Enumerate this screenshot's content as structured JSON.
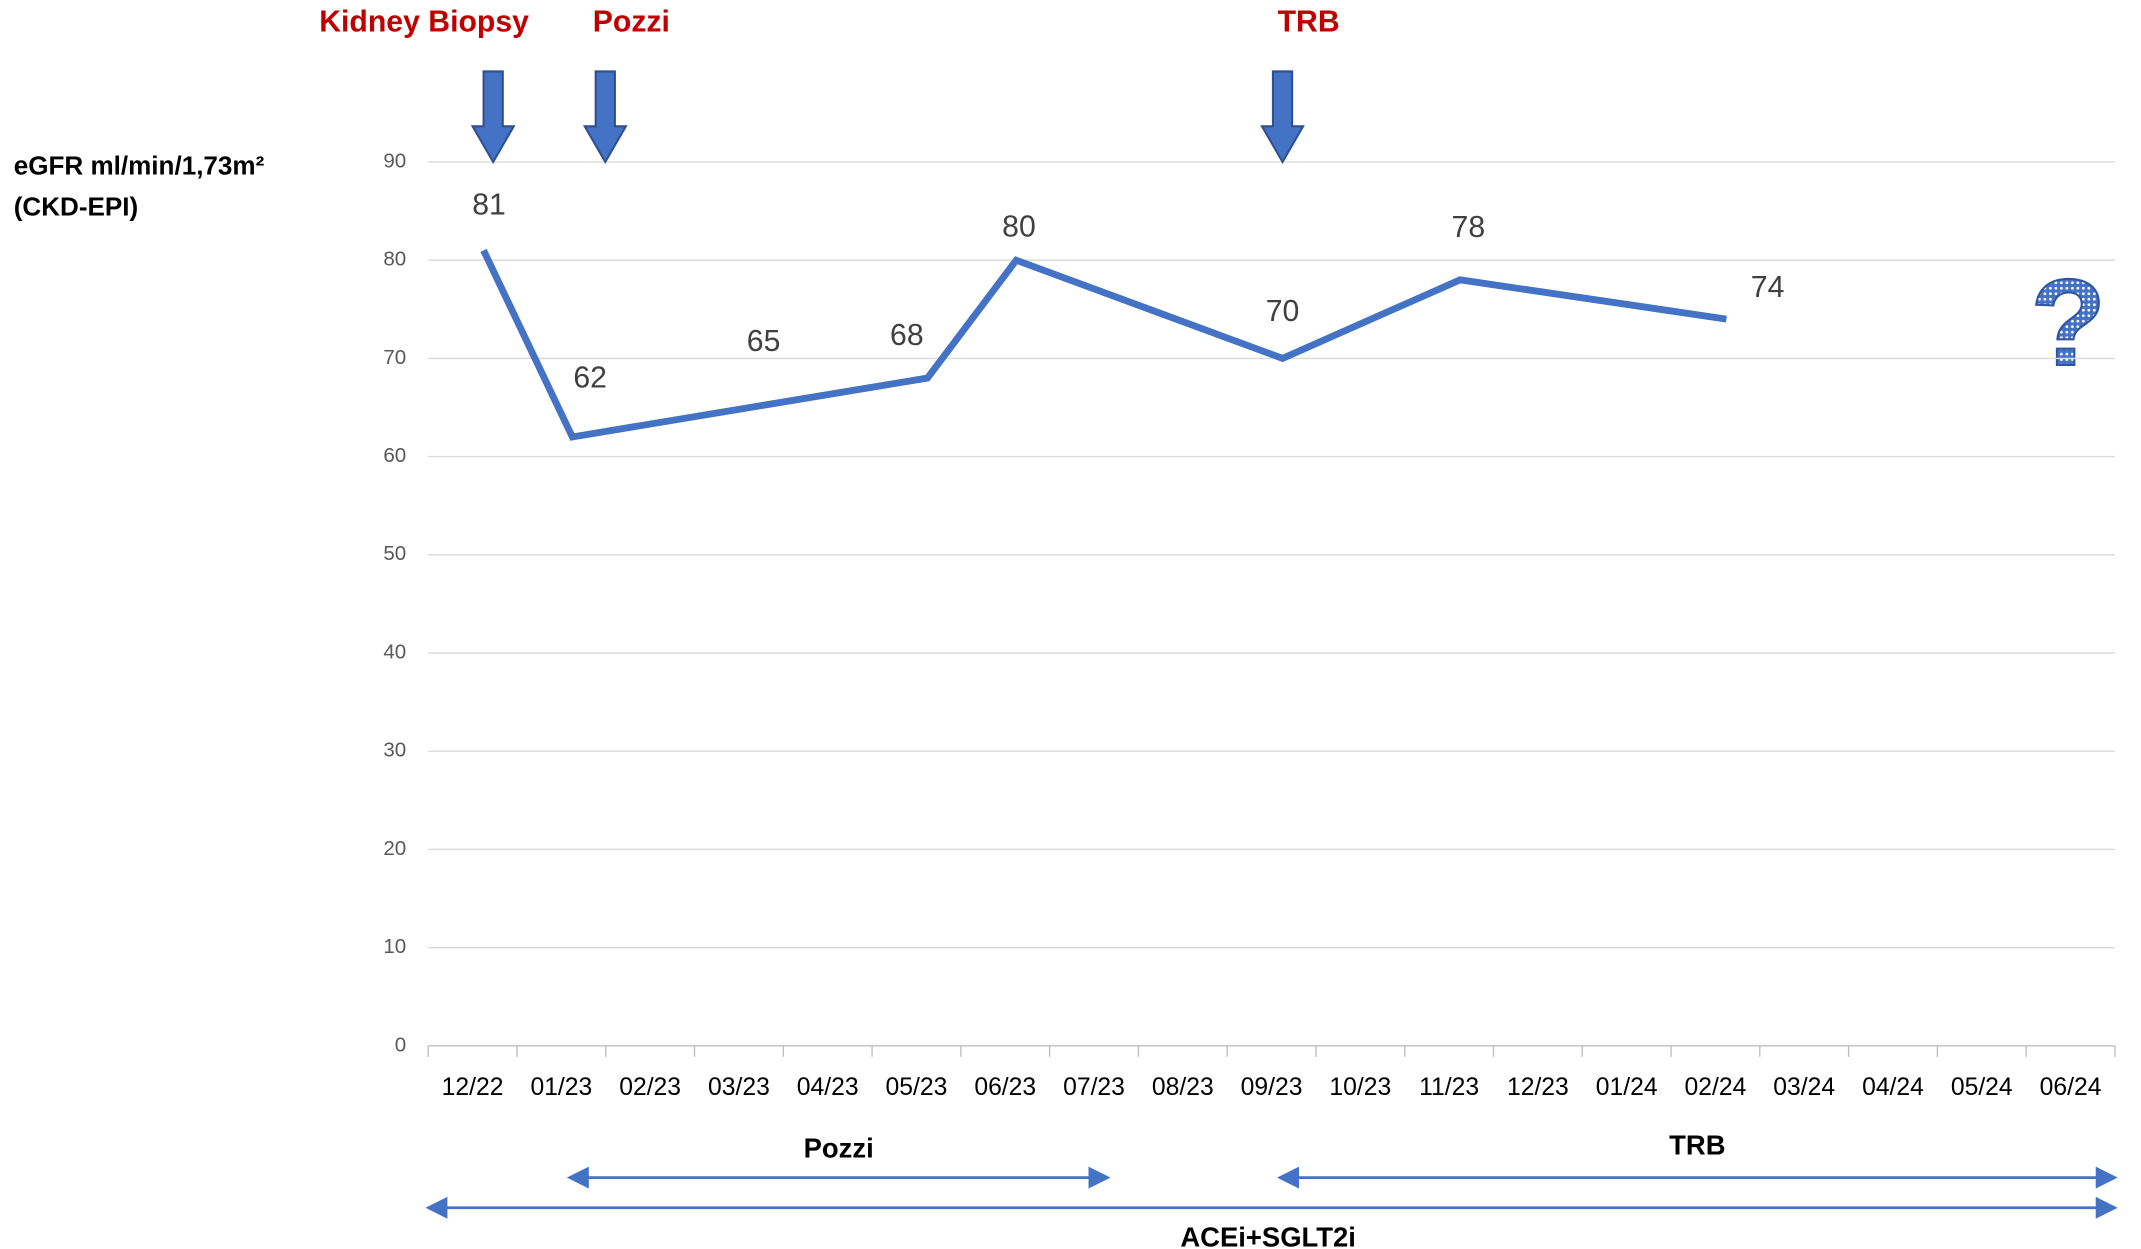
{
  "chart_data": {
    "type": "line",
    "y_label": [
      "eGFR ml/min/1,73m²",
      "(CKD-EPI)"
    ],
    "categories": [
      "12/22",
      "01/23",
      "02/23",
      "03/23",
      "04/23",
      "05/23",
      "06/23",
      "07/23",
      "08/23",
      "09/23",
      "10/23",
      "11/23",
      "12/23",
      "01/24",
      "02/24",
      "03/24",
      "04/24",
      "05/24",
      "06/24"
    ],
    "x": [
      "12/22",
      "01/23",
      "03/23",
      "05/23",
      "06/23",
      "09/23",
      "11/23",
      "02/24"
    ],
    "series": [
      {
        "name": "eGFR",
        "color": "#4472c4",
        "values": [
          81,
          62,
          65,
          68,
          80,
          70,
          78,
          74
        ]
      }
    ],
    "ylim": [
      0,
      90
    ],
    "yticks": [
      0,
      10,
      20,
      30,
      40,
      50,
      60,
      70,
      80,
      90
    ],
    "grid": true,
    "events": [
      {
        "label": "Kidney Biopsy",
        "x": "12/22"
      },
      {
        "label": "Pozzi",
        "x": "01/23"
      },
      {
        "label": "TRB",
        "x": "09/23"
      }
    ],
    "question": "?",
    "periods": [
      {
        "label": "Pozzi",
        "start": "01/23",
        "end": "07/23"
      },
      {
        "label": "TRB",
        "start": "09/23",
        "end": "06/24"
      },
      {
        "label": "ACEi+SGLT2i",
        "start": "12/22",
        "end": "06/24"
      }
    ]
  }
}
